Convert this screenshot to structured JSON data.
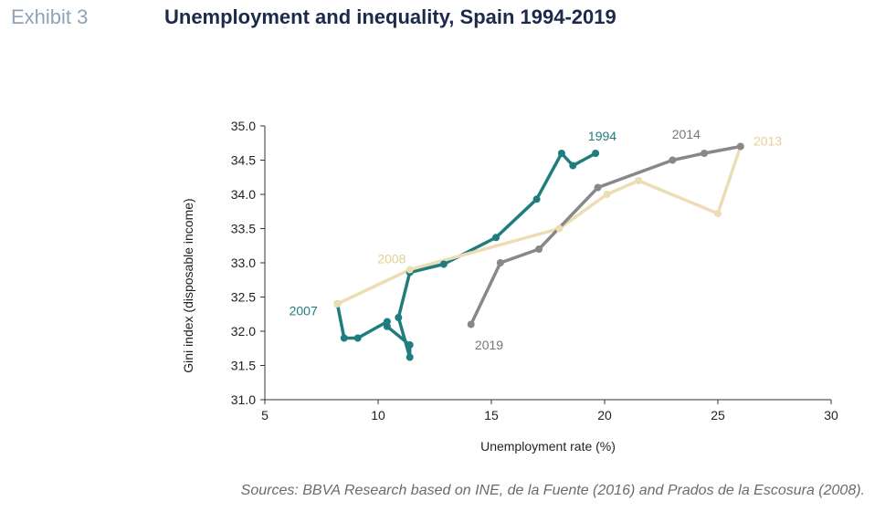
{
  "exhibit": "Exhibit 3",
  "title": "Unemployment and inequality, Spain 1994-2019",
  "source": "Sources: BBVA Research based on INE, de la Fuente (2016) and Prados de la Escosura (2008).",
  "colors": {
    "teal": "#207d7e",
    "gray": "#888888",
    "beige": "#eddcb4",
    "beige_text": "#e5cf94"
  },
  "chart_data": {
    "type": "line",
    "xlabel": "Unemployment rate (%)",
    "ylabel": "Gini index (disposable income)",
    "xlim": [
      5,
      30
    ],
    "ylim": [
      31.0,
      35.0
    ],
    "xticks": [
      5,
      10,
      15,
      20,
      25,
      30
    ],
    "yticks": [
      31.0,
      31.5,
      32.0,
      32.5,
      33.0,
      33.5,
      34.0,
      34.5,
      35.0
    ],
    "grid": false,
    "series": [
      {
        "name": "",
        "color": "#207d7e",
        "points": [
          [
            19.6,
            34.6
          ],
          [
            18.6,
            34.42
          ],
          [
            18.1,
            34.6
          ],
          [
            17.0,
            33.93
          ],
          [
            15.2,
            33.37
          ],
          [
            12.9,
            32.98
          ],
          [
            11.4,
            32.86
          ],
          [
            10.9,
            32.2
          ],
          [
            11.4,
            31.62
          ],
          [
            11.4,
            31.8
          ],
          [
            10.4,
            32.07
          ],
          [
            10.4,
            32.14
          ],
          [
            9.1,
            31.9
          ],
          [
            8.5,
            31.9
          ],
          [
            8.2,
            32.4
          ]
        ]
      },
      {
        "name": "",
        "color": "#eddcb4",
        "points": [
          [
            8.2,
            32.4
          ],
          [
            11.4,
            32.9
          ],
          [
            18.0,
            33.5
          ],
          [
            20.1,
            34.0
          ],
          [
            21.5,
            34.2
          ],
          [
            25.0,
            33.72
          ],
          [
            26.0,
            34.7
          ]
        ]
      },
      {
        "name": "",
        "color": "#888888",
        "points": [
          [
            26.0,
            34.7
          ],
          [
            24.4,
            34.6
          ],
          [
            23.0,
            34.5
          ],
          [
            19.7,
            34.1
          ],
          [
            17.1,
            33.2
          ],
          [
            15.4,
            33.0
          ],
          [
            14.1,
            32.1
          ]
        ]
      }
    ],
    "annotations": [
      {
        "text": "1994",
        "x": 19.9,
        "y": 34.85,
        "color": "#207d7e"
      },
      {
        "text": "2007",
        "x": 6.7,
        "y": 32.3,
        "color": "#207d7e"
      },
      {
        "text": "2008",
        "x": 10.6,
        "y": 33.06,
        "color": "#e5cf94"
      },
      {
        "text": "2014",
        "x": 23.6,
        "y": 34.88,
        "color": "#777777"
      },
      {
        "text": "2013",
        "x": 27.2,
        "y": 34.78,
        "color": "#e5cf94"
      },
      {
        "text": "2019",
        "x": 14.9,
        "y": 31.8,
        "color": "#777777"
      }
    ]
  }
}
